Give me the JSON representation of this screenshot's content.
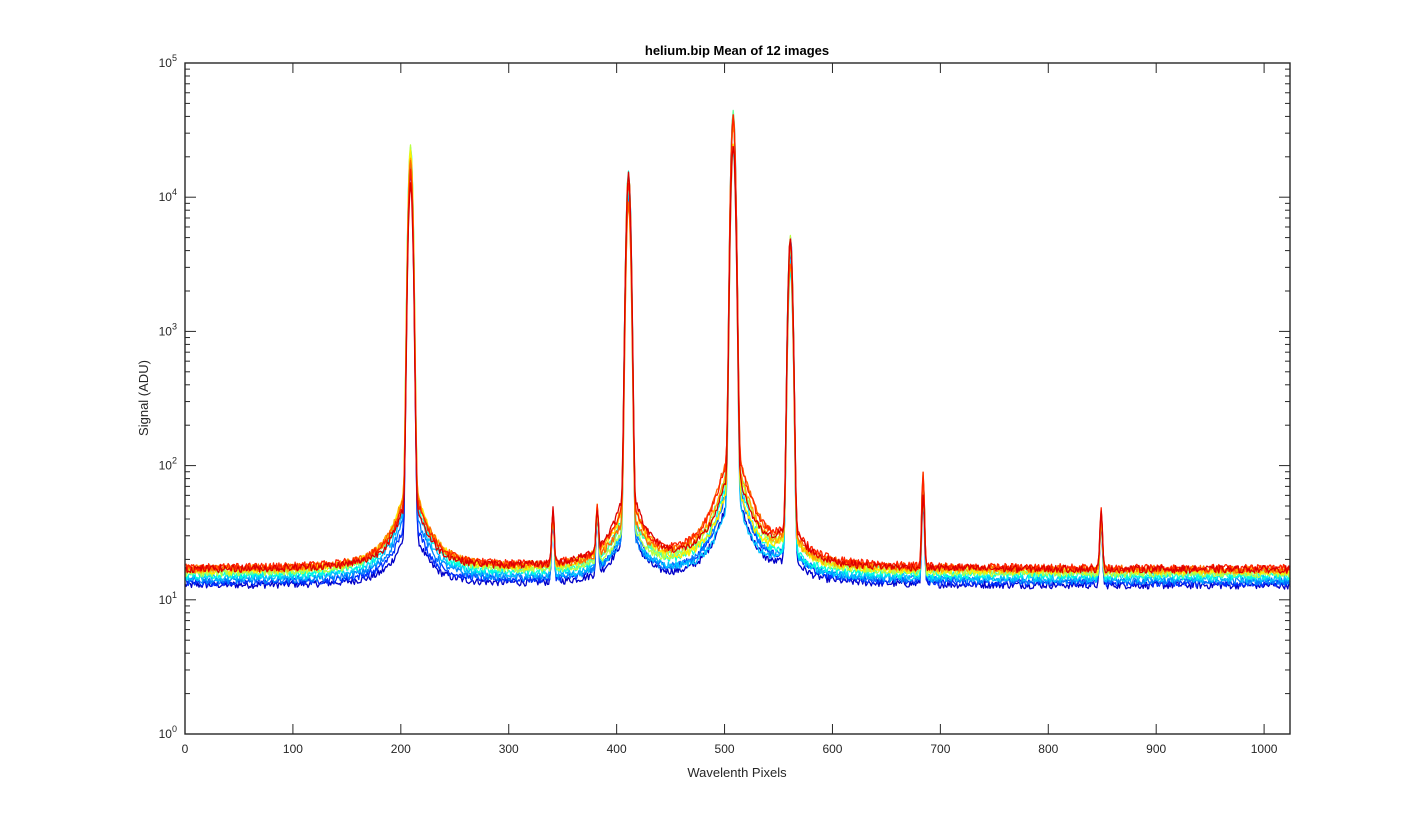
{
  "chart_data": {
    "type": "line",
    "title": "helium.bip  Mean of 12 images",
    "xlabel": "Wavelenth Pixels",
    "ylabel": "Signal (ADU)",
    "xlim": [
      0,
      1024
    ],
    "ylim": [
      1,
      100000
    ],
    "yscale": "log",
    "grid": false,
    "legend": "none",
    "x_ticks": [
      "0",
      "100",
      "200",
      "300",
      "400",
      "500",
      "600",
      "700",
      "800",
      "900",
      "1000"
    ],
    "x_tick_values": [
      0,
      100,
      200,
      300,
      400,
      500,
      600,
      700,
      800,
      900,
      1000
    ],
    "y_tick_values": [
      1,
      10,
      100,
      1000,
      10000,
      100000
    ],
    "y_ticks": [
      {
        "base": "10",
        "exp": "0"
      },
      {
        "base": "10",
        "exp": "1"
      },
      {
        "base": "10",
        "exp": "2"
      },
      {
        "base": "10",
        "exp": "3"
      },
      {
        "base": "10",
        "exp": "4"
      },
      {
        "base": "10",
        "exp": "5"
      }
    ],
    "peaks": [
      {
        "x": 209,
        "y_max": 24000,
        "y_min": 5500
      },
      {
        "x": 341,
        "y_max": 29,
        "y_min": 20
      },
      {
        "x": 382,
        "y_max": 29,
        "y_min": 20
      },
      {
        "x": 411,
        "y_max": 15000,
        "y_min": 3300
      },
      {
        "x": 508,
        "y_max": 43000,
        "y_min": 11000
      },
      {
        "x": 561,
        "y_max": 4900,
        "y_min": 1100
      },
      {
        "x": 684,
        "y_max": 72,
        "y_min": 20
      },
      {
        "x": 849,
        "y_max": 29,
        "y_min": 20
      }
    ],
    "series": [
      {
        "color": "#0000c8",
        "baseline": 12.8
      },
      {
        "color": "#0033ff",
        "baseline": 13.3
      },
      {
        "color": "#0080ff",
        "baseline": 13.8
      },
      {
        "color": "#00c0ff",
        "baseline": 14.4
      },
      {
        "color": "#00ffe0",
        "baseline": 15.0
      },
      {
        "color": "#66ff99",
        "baseline": 16.0
      },
      {
        "color": "#b8ff44",
        "baseline": 15.6
      },
      {
        "color": "#ffee00",
        "baseline": 16.3
      },
      {
        "color": "#ffaa00",
        "baseline": 16.6
      },
      {
        "color": "#ff6a00",
        "baseline": 16.9
      },
      {
        "color": "#ff2200",
        "baseline": 17.2
      },
      {
        "color": "#dd0000",
        "baseline": 16.8
      }
    ]
  }
}
